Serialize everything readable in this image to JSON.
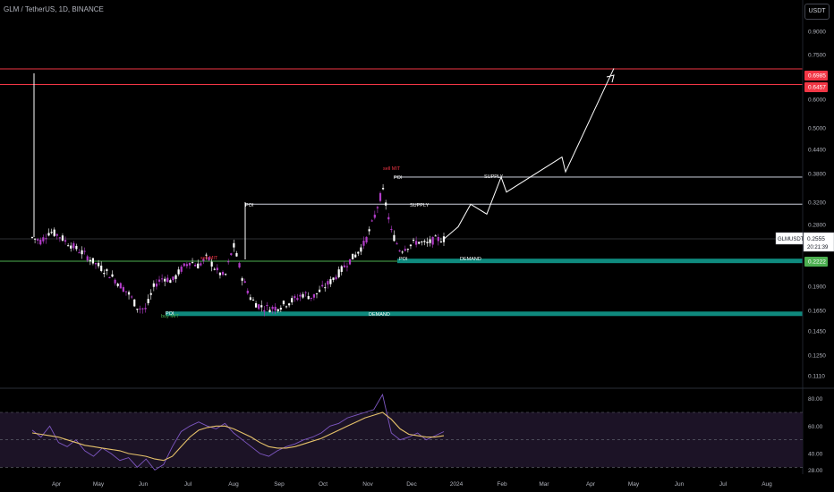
{
  "header": {
    "symbol_title": "GLM / TetherUS, 1D, BINANCE",
    "currency_button": "USDT"
  },
  "colors": {
    "background": "#000000",
    "candle_up": "#ffffff",
    "candle_down": "#b23cc8",
    "resistance_line": "#f23645",
    "support_line": "#4caf50",
    "demand_zone": "#0f8a7e",
    "supply_line": "#9598a1",
    "rsi_line": "#7e57c2",
    "rsi_ma": "#e6c26a",
    "sell_label": "#f23645",
    "buy_label": "#4caf50"
  },
  "chart_data": [
    {
      "type": "candlestick",
      "title": "",
      "scale": "log",
      "y_ticks": [
        "0.9000",
        "0.7500",
        "0.6000",
        "0.5000",
        "0.4400",
        "0.3800",
        "0.3200",
        "0.2800",
        "0.2222",
        "0.1900",
        "0.1650",
        "0.1450",
        "0.1250",
        "0.1110"
      ],
      "x_ticks": [
        "Apr",
        "May",
        "Jun",
        "Jul",
        "Aug",
        "Sep",
        "Oct",
        "Nov",
        "Dec",
        "2024",
        "Feb",
        "Mar",
        "Apr",
        "May",
        "Jun",
        "Jul",
        "Aug"
      ],
      "price_labels": [
        {
          "name": "resistance-1",
          "value": "0.6985"
        },
        {
          "name": "resistance-2",
          "value": "0.6457"
        },
        {
          "name": "current-price",
          "value": "0.2555",
          "symbol": "GLMUSDT",
          "countdown": "20:21:39"
        },
        {
          "name": "support",
          "value": "0.2222"
        }
      ],
      "annotations": [
        {
          "text": "sell MIT",
          "kind": "sell"
        },
        {
          "text": "sell MIT",
          "kind": "sell"
        },
        {
          "text": "buy MIT",
          "kind": "buy"
        },
        {
          "text": "POI",
          "kind": "label"
        },
        {
          "text": "POI",
          "kind": "label"
        },
        {
          "text": "POI",
          "kind": "label"
        },
        {
          "text": "POI",
          "kind": "label"
        },
        {
          "text": "SUPPLY",
          "kind": "label"
        },
        {
          "text": "SUPPLY",
          "kind": "label"
        },
        {
          "text": "DEMAND",
          "kind": "label"
        },
        {
          "text": "DEMAND",
          "kind": "label"
        }
      ],
      "levels": [
        {
          "name": "red-resistance-top",
          "value": 0.6985
        },
        {
          "name": "red-resistance-bottom",
          "value": 0.6457
        },
        {
          "name": "green-support",
          "value": 0.2222
        },
        {
          "name": "supply-upper",
          "value": 0.372
        },
        {
          "name": "supply-lower",
          "value": 0.316
        },
        {
          "name": "demand-upper",
          "value": 0.222
        },
        {
          "name": "demand-lower",
          "value": 0.162
        }
      ],
      "price_path": [
        0.258,
        0.252,
        0.268,
        0.262,
        0.25,
        0.241,
        0.232,
        0.221,
        0.212,
        0.203,
        0.192,
        0.182,
        0.168,
        0.166,
        0.192,
        0.201,
        0.196,
        0.211,
        0.222,
        0.216,
        0.228,
        0.21,
        0.201,
        0.245,
        0.2,
        0.176,
        0.169,
        0.167,
        0.168,
        0.172,
        0.176,
        0.182,
        0.178,
        0.186,
        0.195,
        0.206,
        0.22,
        0.232,
        0.25,
        0.288,
        0.345,
        0.268,
        0.238,
        0.245,
        0.252,
        0.247,
        0.255,
        0.2555
      ],
      "projection": [
        0.2555,
        0.276,
        0.316,
        0.298,
        0.372,
        0.34,
        0.42,
        0.384,
        0.7
      ]
    },
    {
      "type": "line",
      "title": "",
      "y_ticks": [
        "80.00",
        "60.00",
        "40.00",
        "28.00"
      ],
      "ylim": [
        25,
        85
      ],
      "bands": [
        70,
        50,
        30
      ],
      "series": [
        {
          "values": [
            57,
            52,
            60,
            48,
            45,
            50,
            42,
            38,
            44,
            40,
            35,
            37,
            30,
            36,
            28,
            32,
            45,
            56,
            60,
            63,
            60,
            58,
            62,
            55,
            50,
            45,
            40,
            38,
            42,
            45,
            47,
            50,
            52,
            55,
            60,
            62,
            66,
            68,
            70,
            72,
            83,
            55,
            50,
            52,
            55,
            50,
            53,
            56
          ]
        },
        {
          "values": [
            55,
            54,
            53,
            52,
            50,
            48,
            46,
            45,
            44,
            43,
            42,
            40,
            39,
            38,
            36,
            35,
            38,
            45,
            52,
            57,
            59,
            60,
            60,
            58,
            55,
            52,
            48,
            45,
            44,
            44,
            45,
            47,
            49,
            51,
            54,
            57,
            60,
            63,
            66,
            68,
            70,
            65,
            58,
            54,
            53,
            52,
            52,
            53
          ]
        }
      ]
    }
  ]
}
